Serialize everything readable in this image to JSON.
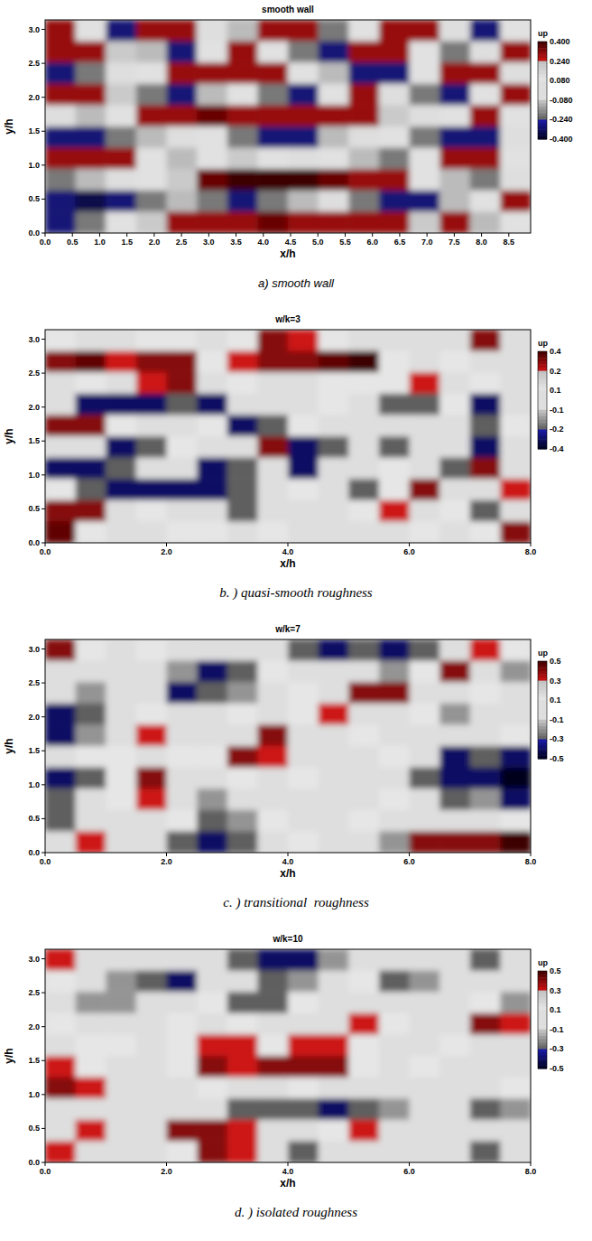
{
  "chart_data": [
    {
      "type": "heatmap",
      "title": "smooth wall",
      "caption": "a) smooth wall",
      "x_label": "x/h",
      "y_label": "y/h",
      "xlim": [
        0,
        8.9
      ],
      "ylim": [
        0,
        3.14
      ],
      "xticks": [
        {
          "value": 0,
          "label": "0.0"
        },
        {
          "value": 0.5,
          "label": "0.5"
        },
        {
          "value": 1,
          "label": "1.0"
        },
        {
          "value": 1.5,
          "label": "1.5"
        },
        {
          "value": 2,
          "label": "2.0"
        },
        {
          "value": 2.5,
          "label": "2.5"
        },
        {
          "value": 3,
          "label": "3.0"
        },
        {
          "value": 3.5,
          "label": "3.5"
        },
        {
          "value": 4,
          "label": "4.0"
        },
        {
          "value": 4.5,
          "label": "4.5"
        },
        {
          "value": 5,
          "label": "5.0"
        },
        {
          "value": 5.5,
          "label": "5.5"
        },
        {
          "value": 6,
          "label": "6.0"
        },
        {
          "value": 6.5,
          "label": "6.5"
        },
        {
          "value": 7,
          "label": "7.0"
        },
        {
          "value": 7.5,
          "label": "7.5"
        },
        {
          "value": 8,
          "label": "8.0"
        },
        {
          "value": 8.5,
          "label": "8.5"
        }
      ],
      "yticks": [
        {
          "value": 0,
          "label": "0.0"
        },
        {
          "value": 0.5,
          "label": "0.5"
        },
        {
          "value": 1,
          "label": "1.0"
        },
        {
          "value": 1.5,
          "label": "1.5"
        },
        {
          "value": 2,
          "label": "2.0"
        },
        {
          "value": 2.5,
          "label": "2.5"
        },
        {
          "value": 3,
          "label": "3.0"
        }
      ],
      "colorbar": {
        "label": "up",
        "range": [
          -0.4,
          0.4
        ],
        "ticks": [
          {
            "value": 0.4,
            "label": "0.400"
          },
          {
            "value": 0.24,
            "label": "0.240"
          },
          {
            "value": 0.08,
            "label": "0.080"
          },
          {
            "value": -0.08,
            "label": "-0.080"
          },
          {
            "value": -0.24,
            "label": "-0.240"
          },
          {
            "value": -0.4,
            "label": "-0.400"
          }
        ]
      },
      "cells": [
        [
          0.3,
          0.1,
          -0.3,
          0.3,
          0.3,
          0,
          -0.1,
          0.3,
          0.3,
          -0.2,
          0.1,
          0.3,
          0.3,
          0,
          -0.3,
          0.1
        ],
        [
          0.3,
          0.3,
          0.2,
          -0.1,
          -0.3,
          0.1,
          0.3,
          0.1,
          -0.2,
          -0.3,
          0.3,
          0.3,
          0.1,
          -0.2,
          0,
          0.3
        ],
        [
          -0.3,
          -0.2,
          0,
          0.1,
          0.3,
          0.3,
          0.3,
          0.3,
          0.1,
          -0.1,
          -0.3,
          -0.3,
          0.1,
          0.3,
          0.3,
          0
        ],
        [
          0.3,
          0.3,
          0.2,
          -0.2,
          -0.3,
          -0.1,
          0.1,
          -0.2,
          -0.3,
          0.1,
          0.3,
          0,
          -0.2,
          -0.3,
          0.1,
          0.3
        ],
        [
          0,
          -0.1,
          0.1,
          0.3,
          0.3,
          0.35,
          0.3,
          0.3,
          0.3,
          0.3,
          0.3,
          0.2,
          0,
          0.1,
          0.3,
          0.1
        ],
        [
          -0.3,
          -0.3,
          -0.2,
          -0.1,
          0,
          0.1,
          -0.2,
          -0.3,
          -0.3,
          -0.1,
          0,
          0.1,
          -0.2,
          -0.3,
          -0.3,
          0
        ],
        [
          0.3,
          0.3,
          0.3,
          0.1,
          -0.1,
          0.1,
          0.2,
          0.1,
          0,
          0.1,
          -0.1,
          -0.2,
          0.1,
          0.3,
          0.3,
          0.1
        ],
        [
          -0.2,
          -0.1,
          0,
          0.1,
          0.2,
          0.35,
          0.4,
          0.4,
          0.4,
          0.35,
          0.3,
          0.3,
          0.1,
          -0.1,
          -0.2,
          0
        ],
        [
          -0.3,
          -0.35,
          -0.3,
          -0.2,
          -0.1,
          -0.2,
          -0.3,
          -0.2,
          -0.1,
          0,
          -0.2,
          -0.3,
          -0.3,
          -0.1,
          0.1,
          0.3
        ],
        [
          -0.3,
          -0.2,
          0.1,
          0.2,
          0.3,
          0.3,
          0.3,
          0.35,
          0.3,
          0.3,
          0.3,
          0.3,
          0.2,
          0.3,
          -0.1,
          0.1
        ]
      ]
    },
    {
      "type": "heatmap",
      "title": "w/k=3",
      "caption": "b. ) quasi-smooth roughness",
      "x_label": "x/h",
      "y_label": "y/h",
      "xlim": [
        0,
        8
      ],
      "ylim": [
        0,
        3.14
      ],
      "xticks": [
        {
          "value": 0,
          "label": "0.0"
        },
        {
          "value": 2,
          "label": "2.0"
        },
        {
          "value": 4,
          "label": "4.0"
        },
        {
          "value": 6,
          "label": "6.0"
        },
        {
          "value": 8,
          "label": "8.0"
        }
      ],
      "yticks": [
        {
          "value": 0,
          "label": "0.0"
        },
        {
          "value": 0.5,
          "label": "0.5"
        },
        {
          "value": 1,
          "label": "1.0"
        },
        {
          "value": 1.5,
          "label": "1.5"
        },
        {
          "value": 2,
          "label": "2.0"
        },
        {
          "value": 2.5,
          "label": "2.5"
        },
        {
          "value": 3,
          "label": "3.0"
        }
      ],
      "colorbar": {
        "label": "up",
        "range": [
          -0.4,
          0.4
        ],
        "ticks": [
          0.4,
          0.2,
          0.1,
          -0.1,
          -0.2,
          -0.4
        ]
      },
      "cells": [
        [
          0.1,
          0,
          0,
          0.1,
          0.1,
          0,
          0.1,
          0.3,
          0.2,
          0.1,
          0,
          0,
          0,
          0,
          0.3,
          0
        ],
        [
          0.3,
          0.35,
          0.2,
          0.3,
          0.3,
          0.1,
          0.2,
          0.3,
          0.3,
          0.35,
          0.4,
          0.1,
          0,
          0.1,
          0,
          -0.1
        ],
        [
          -0.1,
          0.1,
          0,
          0.2,
          0.3,
          -0.1,
          0.1,
          0,
          0,
          0.1,
          0.1,
          0.1,
          0.2,
          0,
          0.1,
          0
        ],
        [
          -0.1,
          -0.3,
          -0.3,
          -0.3,
          -0.2,
          -0.3,
          -0.1,
          0,
          0,
          0.1,
          -0.1,
          -0.2,
          -0.2,
          0.1,
          -0.3,
          -0.1
        ],
        [
          0.3,
          0.3,
          0.1,
          -0.1,
          0,
          0.1,
          -0.3,
          -0.2,
          0.1,
          0,
          0,
          -0.1,
          0,
          0,
          -0.2,
          0.1
        ],
        [
          0,
          -0.1,
          -0.3,
          -0.2,
          0.1,
          0,
          -0.1,
          0.3,
          -0.3,
          -0.2,
          -0.1,
          -0.2,
          0,
          -0.1,
          -0.3,
          0
        ],
        [
          -0.3,
          -0.3,
          -0.2,
          -0.1,
          0,
          -0.3,
          -0.2,
          -0.1,
          -0.3,
          0,
          0,
          0.1,
          0,
          -0.2,
          0.3,
          0
        ],
        [
          0.1,
          -0.2,
          -0.3,
          -0.3,
          -0.3,
          -0.3,
          -0.2,
          0,
          0.1,
          0,
          -0.2,
          0.1,
          0.3,
          0,
          0,
          0.2
        ],
        [
          0.3,
          0.3,
          0,
          0.1,
          0,
          -0.1,
          -0.2,
          0,
          0,
          -0.1,
          0.1,
          0.2,
          0,
          0.1,
          -0.2,
          0
        ],
        [
          0.35,
          0.1,
          -0.1,
          0,
          0.1,
          0.1,
          0,
          0.1,
          0,
          0,
          -0.1,
          0,
          0.1,
          -0.1,
          0.1,
          0.3
        ]
      ]
    },
    {
      "type": "heatmap",
      "title": "w/k=7",
      "caption": "c. ) transitional  roughness",
      "x_label": "x/h",
      "y_label": "y/h",
      "xlim": [
        0,
        8
      ],
      "ylim": [
        0,
        3.14
      ],
      "xticks": [
        {
          "value": 0,
          "label": "0.0"
        },
        {
          "value": 2,
          "label": "2.0"
        },
        {
          "value": 4,
          "label": "4.0"
        },
        {
          "value": 6,
          "label": "6.0"
        },
        {
          "value": 8,
          "label": "8.0"
        }
      ],
      "yticks": [
        {
          "value": 0,
          "label": "0.0"
        },
        {
          "value": 0.5,
          "label": "0.5"
        },
        {
          "value": 1,
          "label": "1.0"
        },
        {
          "value": 1.5,
          "label": "1.5"
        },
        {
          "value": 2,
          "label": "2.0"
        },
        {
          "value": 2.5,
          "label": "2.5"
        },
        {
          "value": 3,
          "label": "3.0"
        }
      ],
      "colorbar": {
        "label": "up",
        "range": [
          -0.5,
          0.5
        ],
        "ticks": [
          0.5,
          0.3,
          0.1,
          -0.1,
          -0.3,
          -0.5
        ]
      },
      "cells": [
        [
          0.4,
          0.1,
          0,
          0.1,
          0,
          -0.1,
          0,
          0,
          -0.3,
          -0.4,
          -0.3,
          -0.4,
          -0.3,
          0,
          0.3,
          0.1
        ],
        [
          0,
          -0.1,
          0,
          0,
          -0.2,
          -0.4,
          -0.3,
          0.1,
          0,
          -0.1,
          0,
          -0.2,
          0.1,
          0.4,
          0,
          -0.2
        ],
        [
          -0.1,
          -0.2,
          0,
          0,
          -0.4,
          -0.3,
          -0.2,
          0,
          0.1,
          0,
          0.4,
          0.4,
          0,
          -0.1,
          0.1,
          0
        ],
        [
          -0.4,
          -0.3,
          0,
          0.1,
          0,
          0,
          0.1,
          -0.1,
          0.1,
          0.3,
          0,
          0,
          0.1,
          -0.2,
          -0.1,
          0
        ],
        [
          -0.4,
          -0.2,
          0,
          0.3,
          0,
          -0.1,
          0,
          0.4,
          0,
          0,
          0.1,
          0,
          0,
          -0.1,
          0,
          0.1
        ],
        [
          0,
          0.1,
          0.1,
          0,
          0.1,
          0.1,
          0.4,
          0.3,
          0,
          -0.1,
          0,
          0.1,
          0,
          -0.4,
          -0.3,
          -0.4
        ],
        [
          -0.4,
          -0.3,
          0.1,
          0.4,
          0,
          0,
          0.1,
          0,
          0.1,
          0,
          -0.1,
          0,
          -0.3,
          -0.4,
          -0.4,
          -0.5
        ],
        [
          -0.3,
          0,
          0.1,
          0.3,
          0,
          -0.2,
          0,
          0,
          0,
          -0.1,
          0,
          0.1,
          0,
          -0.3,
          -0.2,
          -0.4
        ],
        [
          -0.3,
          -0.1,
          0,
          0,
          0.1,
          -0.3,
          -0.2,
          0.1,
          0,
          0,
          0.1,
          0,
          0,
          0,
          0,
          0.1
        ],
        [
          0,
          0.3,
          0,
          0,
          -0.3,
          -0.4,
          -0.3,
          0,
          0.1,
          0,
          0,
          -0.2,
          0.4,
          0.4,
          0.4,
          0.5
        ]
      ]
    },
    {
      "type": "heatmap",
      "title": "w/k=10",
      "caption": "d. ) isolated roughness",
      "x_label": "x/h",
      "y_label": "y/h",
      "xlim": [
        0,
        8
      ],
      "ylim": [
        0,
        3.14
      ],
      "xticks": [
        {
          "value": 0,
          "label": "0.0"
        },
        {
          "value": 2,
          "label": "2.0"
        },
        {
          "value": 4,
          "label": "4.0"
        },
        {
          "value": 6,
          "label": "6.0"
        },
        {
          "value": 8,
          "label": "8.0"
        }
      ],
      "yticks": [
        {
          "value": 0,
          "label": "0.0"
        },
        {
          "value": 0.5,
          "label": "0.5"
        },
        {
          "value": 1,
          "label": "1.0"
        },
        {
          "value": 1.5,
          "label": "1.5"
        },
        {
          "value": 2,
          "label": "2.0"
        },
        {
          "value": 2.5,
          "label": "2.5"
        },
        {
          "value": 3,
          "label": "3.0"
        }
      ],
      "colorbar": {
        "label": "up",
        "range": [
          -0.5,
          0.5
        ],
        "ticks": [
          0.5,
          0.3,
          0.1,
          -0.1,
          -0.3,
          -0.5
        ]
      },
      "cells": [
        [
          0.3,
          0,
          0,
          0,
          0,
          -0.1,
          -0.3,
          -0.4,
          -0.4,
          -0.2,
          -0.1,
          0,
          -0.1,
          0,
          -0.3,
          0
        ],
        [
          0.1,
          0,
          -0.2,
          -0.3,
          -0.4,
          -0.1,
          0,
          -0.3,
          -0.2,
          0,
          0.1,
          -0.3,
          -0.2,
          -0.1,
          0,
          0
        ],
        [
          0,
          -0.2,
          -0.2,
          0,
          0,
          0.1,
          -0.3,
          -0.3,
          0.1,
          0,
          0,
          -0.1,
          0,
          0,
          0.1,
          -0.2
        ],
        [
          0.1,
          0,
          0,
          0,
          0.1,
          0,
          0.1,
          0,
          0,
          -0.1,
          0.3,
          0.1,
          0,
          0,
          0.4,
          0.3
        ],
        [
          0,
          0.1,
          0.1,
          0,
          0.1,
          0.3,
          0.3,
          0.1,
          0.3,
          0.3,
          0.1,
          0,
          0,
          0.1,
          0,
          -0.1
        ],
        [
          0.3,
          0.1,
          0,
          0,
          0.1,
          0.4,
          0.3,
          0.4,
          0.4,
          0.4,
          0.1,
          0,
          0.1,
          0,
          -0.1,
          0
        ],
        [
          0.4,
          0.3,
          0,
          -0.1,
          0,
          0.1,
          0,
          0,
          0.1,
          0,
          0,
          -0.1,
          0,
          0,
          0,
          0.1
        ],
        [
          -0.1,
          -0.1,
          0,
          0,
          -0.1,
          -0.1,
          -0.3,
          -0.3,
          -0.3,
          -0.4,
          -0.3,
          -0.2,
          0,
          -0.1,
          -0.3,
          -0.2
        ],
        [
          0,
          0.3,
          -0.1,
          0,
          0.4,
          0.4,
          0.3,
          0,
          0,
          0.1,
          0.3,
          0,
          0,
          -0.1,
          0,
          0
        ],
        [
          0.3,
          0,
          -0.1,
          0,
          0.1,
          0.4,
          0.3,
          0,
          -0.3,
          -0.1,
          0,
          0,
          0,
          0,
          -0.3,
          0
        ]
      ]
    }
  ]
}
